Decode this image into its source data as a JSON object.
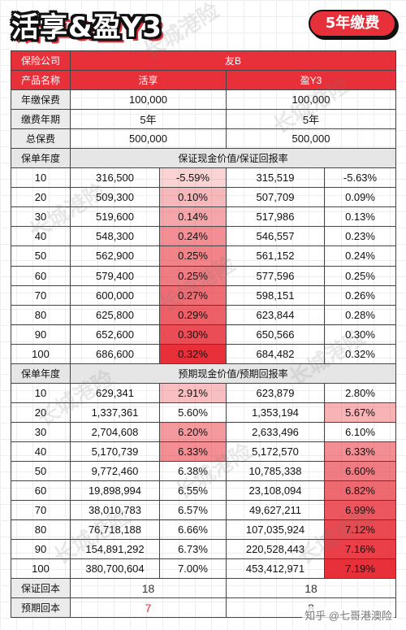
{
  "header": {
    "title": "活享&盈Y3",
    "badge": "5年缴费"
  },
  "colors": {
    "accent": "#e8303a",
    "header_bg": "#e6e6e6"
  },
  "top": {
    "company_label": "保险公司",
    "company_value": "友B",
    "product_label": "产品名称",
    "product_a": "活享",
    "product_b": "盈Y3",
    "rows": [
      {
        "label": "年缴保费",
        "a": "100,000",
        "b": "100,000"
      },
      {
        "label": "缴费年期",
        "a": "5年",
        "b": "5年"
      },
      {
        "label": "总保费",
        "a": "500,000",
        "b": "500,000"
      }
    ]
  },
  "guaranteed": {
    "year_label": "保单年度",
    "title": "保证现金价值/保证回报率",
    "rows": [
      {
        "year": "10",
        "a_value": "316,500",
        "a_rate": "-5.59%",
        "a_shade": 0.1,
        "b_value": "315,519",
        "b_rate": "-5.63%",
        "b_shade": 0
      },
      {
        "year": "20",
        "a_value": "509,300",
        "a_rate": "0.10%",
        "a_shade": 0.25,
        "b_value": "507,709",
        "b_rate": "0.09%",
        "b_shade": 0
      },
      {
        "year": "30",
        "a_value": "519,600",
        "a_rate": "0.14%",
        "a_shade": 0.35,
        "b_value": "517,986",
        "b_rate": "0.13%",
        "b_shade": 0
      },
      {
        "year": "40",
        "a_value": "548,300",
        "a_rate": "0.24%",
        "a_shade": 0.48,
        "b_value": "546,557",
        "b_rate": "0.23%",
        "b_shade": 0
      },
      {
        "year": "50",
        "a_value": "562,900",
        "a_rate": "0.25%",
        "a_shade": 0.55,
        "b_value": "561,152",
        "b_rate": "0.24%",
        "b_shade": 0
      },
      {
        "year": "60",
        "a_value": "579,400",
        "a_rate": "0.25%",
        "a_shade": 0.58,
        "b_value": "577,596",
        "b_rate": "0.25%",
        "b_shade": 0
      },
      {
        "year": "70",
        "a_value": "600,000",
        "a_rate": "0.27%",
        "a_shade": 0.66,
        "b_value": "598,151",
        "b_rate": "0.26%",
        "b_shade": 0
      },
      {
        "year": "80",
        "a_value": "625,800",
        "a_rate": "0.29%",
        "a_shade": 0.74,
        "b_value": "623,844",
        "b_rate": "0.28%",
        "b_shade": 0
      },
      {
        "year": "90",
        "a_value": "652,600",
        "a_rate": "0.30%",
        "a_shade": 0.84,
        "b_value": "650,566",
        "b_rate": "0.30%",
        "b_shade": 0
      },
      {
        "year": "100",
        "a_value": "686,600",
        "a_rate": "0.32%",
        "a_shade": 1.0,
        "b_value": "684,482",
        "b_rate": "0.32%",
        "b_shade": 0
      }
    ]
  },
  "projected": {
    "year_label": "保单年度",
    "title": "预期现金价值/预期回报率",
    "rows": [
      {
        "year": "10",
        "a_value": "629,341",
        "a_rate": "2.91%",
        "a_shade": 0.22,
        "b_value": "623,879",
        "b_rate": "2.80%",
        "b_shade": 0
      },
      {
        "year": "20",
        "a_value": "1,337,361",
        "a_rate": "5.60%",
        "a_shade": 0,
        "b_value": "1,353,194",
        "b_rate": "5.67%",
        "b_shade": 0.28
      },
      {
        "year": "30",
        "a_value": "2,704,608",
        "a_rate": "6.20%",
        "a_shade": 0.42,
        "b_value": "2,633,496",
        "b_rate": "6.10%",
        "b_shade": 0
      },
      {
        "year": "40",
        "a_value": "5,170,739",
        "a_rate": "6.33%",
        "a_shade": 0.48,
        "b_value": "5,172,570",
        "b_rate": "6.33%",
        "b_shade": 0.48
      },
      {
        "year": "50",
        "a_value": "9,772,460",
        "a_rate": "6.38%",
        "a_shade": 0,
        "b_value": "10,785,338",
        "b_rate": "6.60%",
        "b_shade": 0.58
      },
      {
        "year": "60",
        "a_value": "19,898,994",
        "a_rate": "6.55%",
        "a_shade": 0,
        "b_value": "23,108,094",
        "b_rate": "6.82%",
        "b_shade": 0.68
      },
      {
        "year": "70",
        "a_value": "38,010,783",
        "a_rate": "6.57%",
        "a_shade": 0,
        "b_value": "49,627,211",
        "b_rate": "6.99%",
        "b_shade": 0.78
      },
      {
        "year": "80",
        "a_value": "76,718,188",
        "a_rate": "6.66%",
        "a_shade": 0,
        "b_value": "107,035,924",
        "b_rate": "7.12%",
        "b_shade": 0.86
      },
      {
        "year": "90",
        "a_value": "154,891,292",
        "a_rate": "6.73%",
        "a_shade": 0,
        "b_value": "220,528,443",
        "b_rate": "7.16%",
        "b_shade": 0.92
      },
      {
        "year": "100",
        "a_value": "380,700,604",
        "a_rate": "7.00%",
        "a_shade": 0,
        "b_value": "453,412,971",
        "b_rate": "7.19%",
        "b_shade": 1.0
      }
    ]
  },
  "footer": {
    "guaranteed_label": "保证回本",
    "guaranteed_a": "18",
    "guaranteed_b": "18",
    "projected_label": "预期回本",
    "projected_a": "7",
    "projected_b": "8"
  },
  "watermarks": {
    "text": "长城港险",
    "credit": "知乎 @七哥港澳险"
  }
}
